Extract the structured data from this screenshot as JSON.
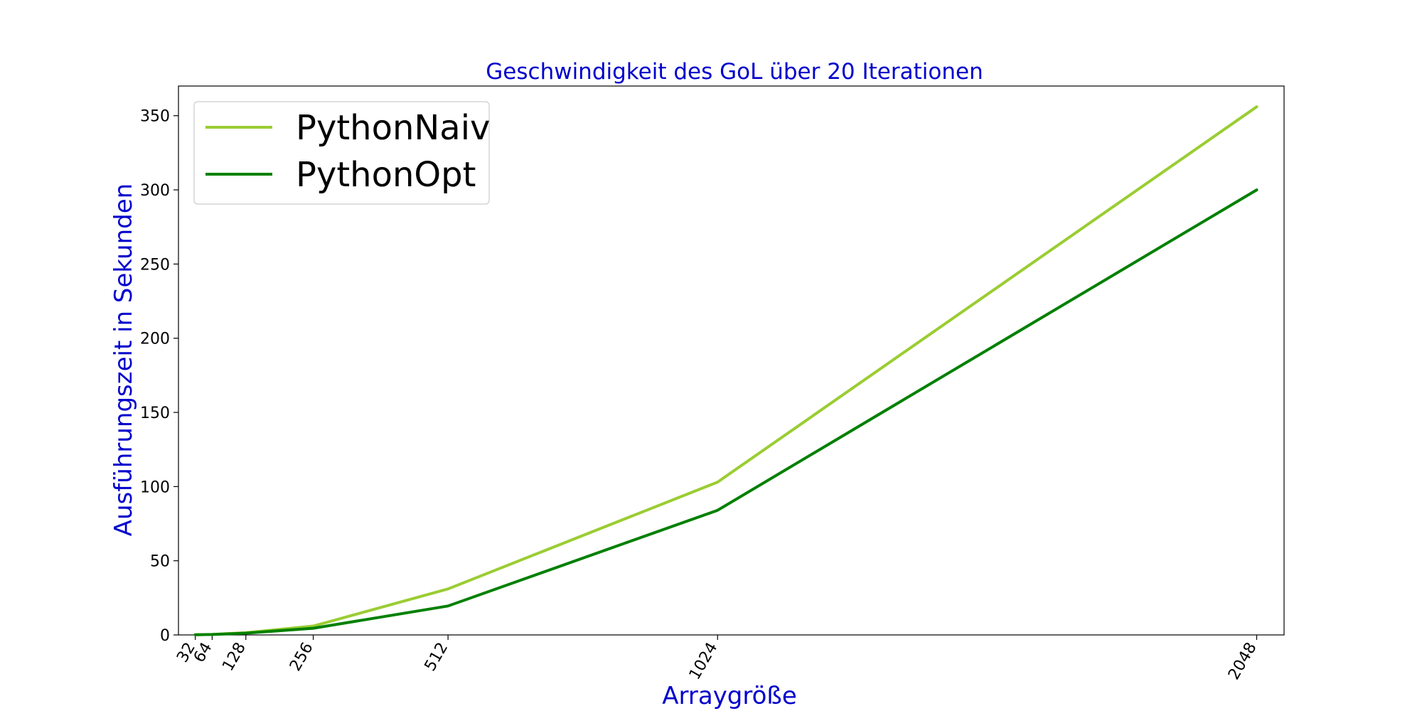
{
  "chart_data": {
    "type": "line",
    "title": "Geschwindigkeit des GoL über 20 Iterationen",
    "xlabel": "Arraygröße",
    "ylabel": "Ausführungszeit in Sekunden",
    "x": [
      32,
      64,
      128,
      256,
      512,
      1024,
      2048
    ],
    "x_tick_labels": [
      "32",
      "64",
      "128",
      "256",
      "512",
      "1024",
      "2048"
    ],
    "xlim": [
      0,
      2100
    ],
    "ylim": [
      0,
      370
    ],
    "y_ticks": [
      0,
      50,
      100,
      150,
      200,
      250,
      300,
      350
    ],
    "grid": false,
    "legend_position": "top-left",
    "series": [
      {
        "name": "PythonNaiv",
        "color": "#9acd32",
        "values": [
          0.1,
          0.4,
          1.5,
          6.0,
          31.0,
          103.0,
          356.0
        ]
      },
      {
        "name": "PythonOpt",
        "color": "#008000",
        "values": [
          0.1,
          0.3,
          1.2,
          4.5,
          19.5,
          84.0,
          300.0
        ]
      }
    ]
  }
}
